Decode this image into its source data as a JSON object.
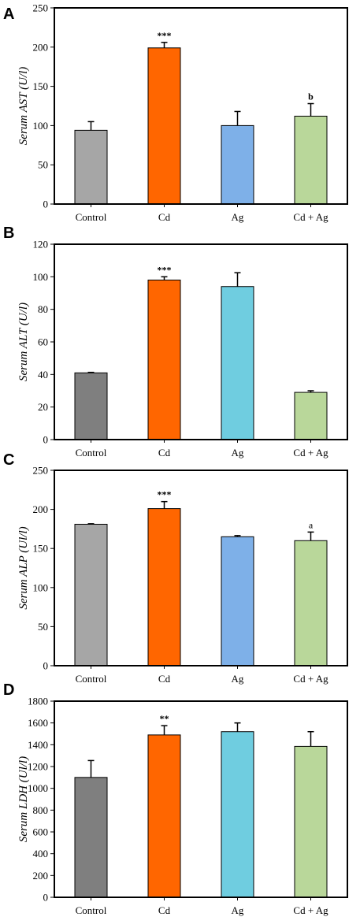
{
  "chart_data": [
    {
      "type": "bar",
      "panel": "A",
      "ylabel": "Serum  AST (U/l)",
      "ylim": [
        0,
        250
      ],
      "ticks": [
        0,
        50,
        100,
        150,
        200,
        250
      ],
      "categories": [
        "Control",
        "Cd",
        "Ag",
        "Cd + Ag"
      ],
      "values": [
        94,
        199,
        100,
        112
      ],
      "errors": [
        11,
        7,
        18,
        16
      ],
      "colors": [
        "#a6a6a6",
        "#ff6600",
        "#7eb0e8",
        "#b9d79a"
      ],
      "annotations": [
        "",
        "***",
        "",
        "b"
      ],
      "annotation_bold": [
        false,
        true,
        false,
        true
      ]
    },
    {
      "type": "bar",
      "panel": "B",
      "ylabel": "Serum  ALT (U/l)",
      "ylim": [
        0,
        120
      ],
      "ticks": [
        0,
        20,
        40,
        60,
        80,
        100,
        120
      ],
      "categories": [
        "Control",
        "Cd",
        "Ag",
        "Cd + Ag"
      ],
      "values": [
        41,
        98,
        94,
        29
      ],
      "errors": [
        0.3,
        2,
        8.5,
        1
      ],
      "colors": [
        "#7f7f7f",
        "#ff6600",
        "#6fcde0",
        "#b9d79a"
      ],
      "annotations": [
        "",
        "***",
        "",
        ""
      ],
      "annotation_bold": [
        false,
        true,
        false,
        false
      ]
    },
    {
      "type": "bar",
      "panel": "C",
      "ylabel": "Serum ALP (Ul/l)",
      "ylim": [
        0,
        250
      ],
      "ticks": [
        0,
        50,
        100,
        150,
        200,
        250
      ],
      "categories": [
        "Control",
        "Cd",
        "Ag",
        "Cd + Ag"
      ],
      "values": [
        181,
        201,
        165,
        160
      ],
      "errors": [
        0.6,
        9,
        1.5,
        11
      ],
      "colors": [
        "#a6a6a6",
        "#ff6600",
        "#7eb0e8",
        "#b9d79a"
      ],
      "annotations": [
        "",
        "***",
        "",
        "a"
      ],
      "annotation_bold": [
        false,
        true,
        false,
        false
      ]
    },
    {
      "type": "bar",
      "panel": "D",
      "ylabel": "Serum LDH (Ul/l)",
      "ylim": [
        0,
        1800
      ],
      "ticks": [
        0,
        200,
        400,
        600,
        800,
        1000,
        1200,
        1400,
        1600,
        1800
      ],
      "categories": [
        "Control",
        "Cd",
        "Ag",
        "Cd + Ag"
      ],
      "values": [
        1100,
        1490,
        1520,
        1385
      ],
      "errors": [
        155,
        85,
        80,
        135
      ],
      "colors": [
        "#7f7f7f",
        "#ff6600",
        "#6fcde0",
        "#b9d79a"
      ],
      "annotations": [
        "",
        "**",
        "",
        ""
      ],
      "annotation_bold": [
        false,
        true,
        false,
        false
      ]
    }
  ]
}
